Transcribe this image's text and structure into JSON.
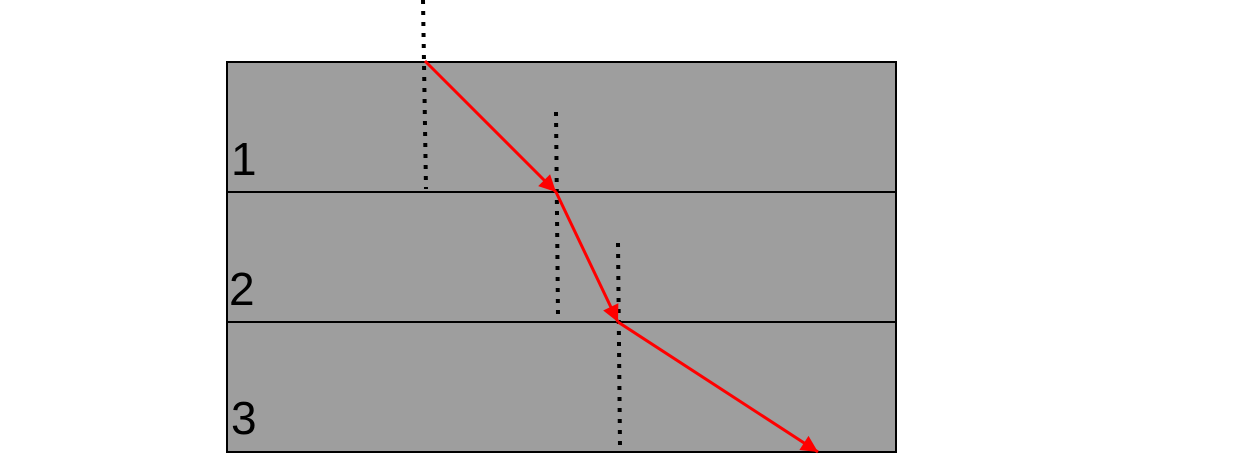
{
  "layers": [
    {
      "label": "1"
    },
    {
      "label": "2"
    },
    {
      "label": "3"
    }
  ],
  "colors": {
    "layer_fill": "#9e9e9e",
    "ray": "#ff0000",
    "normal": "#000000",
    "border": "#000000"
  }
}
